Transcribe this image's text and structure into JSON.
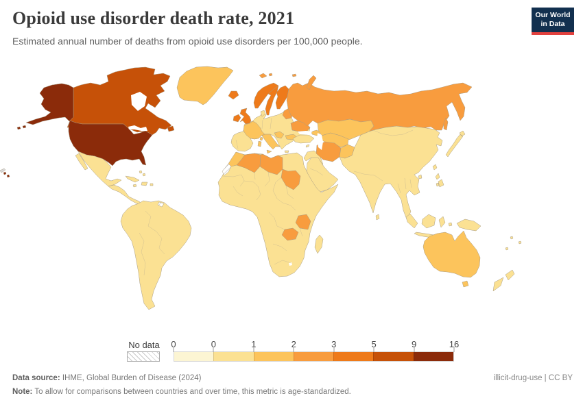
{
  "header": {
    "title": "Opioid use disorder death rate, 2021",
    "subtitle": "Estimated annual number of deaths from opioid use disorders per 100,000 people."
  },
  "logo": {
    "line1": "Our World",
    "line2": "in Data",
    "bg": "#12304F",
    "accent": "#E2413E"
  },
  "legend": {
    "no_data_label": "No data",
    "tick_labels": [
      "0",
      "0",
      "1",
      "2",
      "3",
      "5",
      "9",
      "16"
    ],
    "bin_colors": [
      "#FCF5D3",
      "#FBE193",
      "#FCC45C",
      "#F89C3E",
      "#EE7A1A",
      "#C65108",
      "#8B2B0A"
    ]
  },
  "footer": {
    "source_label": "Data source:",
    "source_text": " IHME, Global Burden of Disease (2024)",
    "note_label": "Note:",
    "note_text": " To allow for comparisons between countries and over time, this metric is age-standardized.",
    "rights": "illicit-drug-use | CC BY"
  },
  "map": {
    "sea_color": "#FFFFFF",
    "border_color": "#A89C85",
    "bins": {
      "no_data": "hatch",
      "0-0": "#FCF5D3",
      "0-1": "#FBE193",
      "1-2": "#FCC45C",
      "2-3": "#F89C3E",
      "3-5": "#EE7A1A",
      "5-9": "#C65108",
      "9-16": "#8B2B0A",
      "fragment": "#D9D9D9"
    },
    "country_bins": {
      "usa": "9-16",
      "alaska": "9-16",
      "hawaii": "9-16",
      "canada": "5-9",
      "newfoundland": "5-9",
      "greenland": "1-2",
      "mexico": "0-1",
      "baja": "0-1",
      "central-america": "0-1",
      "caribbean": "0-1",
      "south-america": "0-1",
      "french-guiana": "no_data",
      "europe": "0-1",
      "france": "1-2",
      "italy": "1-2",
      "balkans-west": "1-2",
      "bulgaria": "1-2",
      "crete": "0-1",
      "cyprus": "0-1",
      "denmark": "0-1",
      "uk": "3-5",
      "ireland": "3-5",
      "iceland": "3-5",
      "norway": "3-5",
      "sweden": "3-5",
      "finland": "3-5",
      "baltics": "2-3",
      "ukraine": "2-3",
      "russia": "2-3",
      "svalbard": "2-3",
      "novaya-zemlya": "2-3",
      "sakhalin": "2-3",
      "turkey": "0-1",
      "caucasus": "1-2",
      "middle-east": "0-1",
      "arabia": "0-1",
      "kazakhstan": "1-2",
      "central-asia": "1-2",
      "iran": "2-3",
      "afghanistan": "1-2",
      "asia": "0-1",
      "sri-lanka": "0-1",
      "japan": "0-1",
      "taiwan": "0-1",
      "hainan": "0-1",
      "philippines": "0-1",
      "indonesia": "0-1",
      "new-guinea": "0-1",
      "pacific-islands": "0-1",
      "africa": "0-1",
      "morocco": "1-2",
      "western-sahara": "no_data",
      "algeria": "2-3",
      "libya": "2-3",
      "sudan": "2-3",
      "tanzania": "2-3",
      "zambia": "2-3",
      "madagascar": "0-1",
      "australia": "1-2",
      "tasmania": "1-2",
      "new-zealand": "0-1",
      "fragment": "fragment"
    }
  },
  "chart_data": {
    "type": "choropleth",
    "title": "Opioid use disorder death rate, 2021",
    "subtitle": "Estimated annual number of deaths from opioid use disorders per 100,000 people.",
    "year": 2021,
    "unit": "deaths per 100,000 people",
    "legend": {
      "no_data": "No data",
      "bin_edges": [
        0,
        0,
        1,
        2,
        3,
        5,
        9,
        16
      ],
      "bin_colors": [
        "#FCF5D3",
        "#FBE193",
        "#FCC45C",
        "#F89C3E",
        "#EE7A1A",
        "#C65108",
        "#8B2B0A"
      ],
      "position": "bottom"
    },
    "values_by_bin": {
      "9-16": [
        "United States"
      ],
      "5-9": [
        "Canada"
      ],
      "3-5": [
        "United Kingdom",
        "Ireland",
        "Iceland",
        "Norway",
        "Sweden",
        "Finland"
      ],
      "2-3": [
        "Russia",
        "Ukraine",
        "Estonia",
        "Latvia",
        "Lithuania",
        "Iran",
        "Algeria",
        "Libya",
        "Sudan",
        "Tanzania",
        "Zambia"
      ],
      "1-2": [
        "Greenland",
        "France",
        "Italy",
        "Serbia",
        "Bulgaria",
        "Georgia",
        "Armenia",
        "Azerbaijan",
        "Kazakhstan",
        "Uzbekistan",
        "Turkmenistan",
        "Afghanistan",
        "Morocco",
        "Australia"
      ],
      "0-1": [
        "Mexico",
        "Brazil",
        "Argentina",
        "most of Latin America",
        "Spain",
        "Portugal",
        "Germany",
        "Poland",
        "Turkey",
        "Saudi Arabia",
        "Egypt",
        "most of Sub-Saharan Africa",
        "China",
        "India",
        "Japan",
        "Southeast Asia",
        "Indonesia",
        "New Zealand"
      ],
      "no_data": [
        "Western Sahara",
        "French Guiana"
      ]
    },
    "source": "IHME, Global Burden of Disease (2024)",
    "note": "To allow for comparisons between countries and over time, this metric is age-standardized."
  }
}
